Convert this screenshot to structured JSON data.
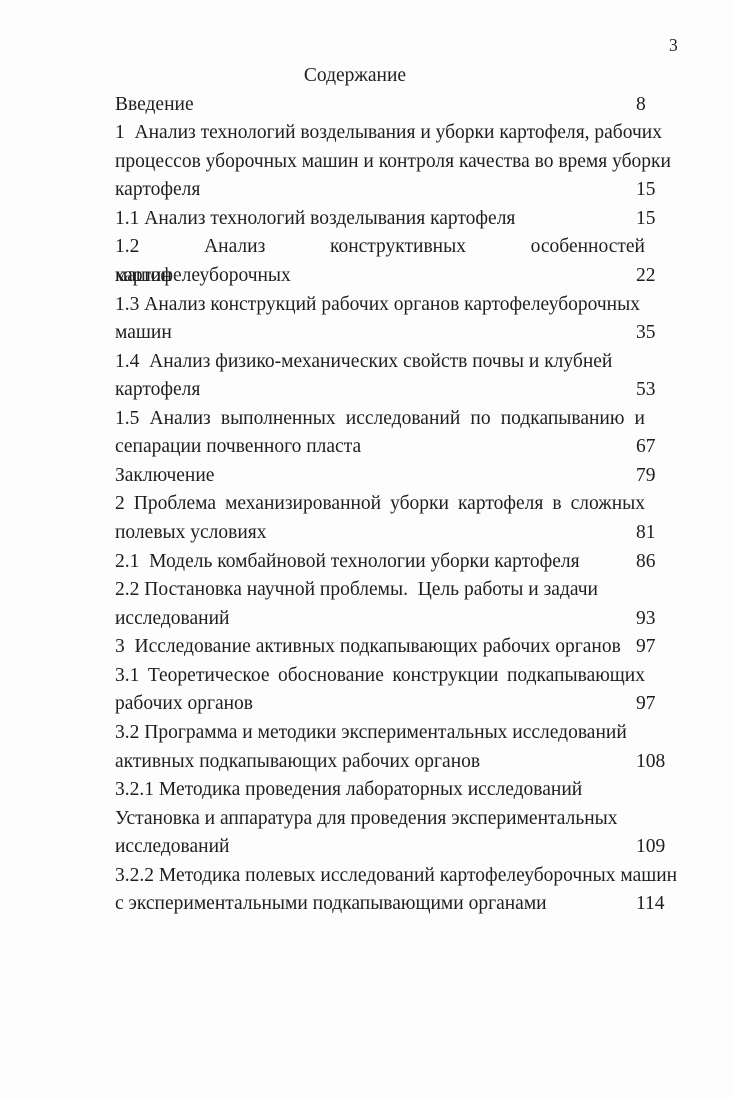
{
  "page": {
    "number": "3",
    "title": "Содержание"
  },
  "colors": {
    "background": "#fdfdfd",
    "text": "#1e1e1e"
  },
  "toc": {
    "lines": [
      {
        "text": "Введение",
        "page": "8"
      },
      {
        "text": "1  Анализ технологий возделывания и уборки картофеля, рабочих"
      },
      {
        "text": "процессов уборочных машин и контроля качества во время уборки"
      },
      {
        "text": "картофеля",
        "page": "15"
      },
      {
        "text": "1.1 Анализ технологий возделывания картофеля",
        "page": "15"
      },
      {
        "text": "1.2 Анализ конструктивных особенностей картофелеуборочных",
        "justify": true
      },
      {
        "text": "машин",
        "page": "22"
      },
      {
        "text": "1.3 Анализ конструкций рабочих органов картофелеуборочных"
      },
      {
        "text": "машин",
        "page": "35"
      },
      {
        "text": "1.4  Анализ физико-механических свойств почвы и клубней"
      },
      {
        "text": "картофеля",
        "page": "53"
      },
      {
        "text": "1.5 Анализ выполненных исследований по подкапыванию и",
        "justify": true
      },
      {
        "text": "сепарации почвенного пласта",
        "page": "67"
      },
      {
        "text": "Заключение",
        "page": "79"
      },
      {
        "text": "2 Проблема механизированной уборки картофеля в сложных",
        "justify": true
      },
      {
        "text": "полевых условиях",
        "page": "81"
      },
      {
        "text": "2.1  Модель комбайновой технологии уборки картофеля",
        "page": "86"
      },
      {
        "text": "2.2 Постановка научной проблемы.  Цель работы и задачи"
      },
      {
        "text": "исследований",
        "page": "93"
      },
      {
        "text": "3  Исследование активных подкапывающих рабочих органов",
        "page": "97"
      },
      {
        "text": "3.1 Теоретическое обоснование конструкции подкапывающих",
        "justify": true
      },
      {
        "text": "рабочих органов",
        "page": "97"
      },
      {
        "text": "3.2 Программа и методики экспериментальных исследований"
      },
      {
        "text": "активных подкапывающих рабочих органов",
        "page": "108"
      },
      {
        "text": "3.2.1 Методика проведения лабораторных исследований"
      },
      {
        "text": "Установка и аппаратура для проведения экспериментальных"
      },
      {
        "text": "исследований",
        "page": "109"
      },
      {
        "text": "3.2.2 Методика полевых исследований картофелеуборочных машин"
      },
      {
        "text": "с экспериментальными подкапывающими органами",
        "page": "114"
      }
    ]
  }
}
